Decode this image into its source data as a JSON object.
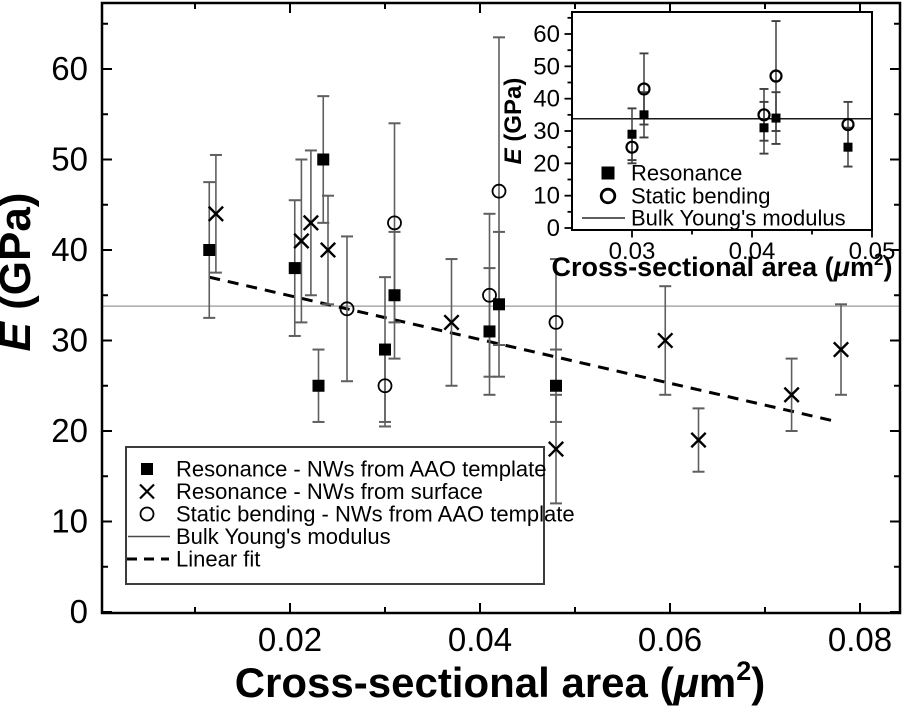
{
  "figure": {
    "background": "#ffffff",
    "ink": "#000000",
    "error_bar_color": "#5f5f5f",
    "bulk_line_color_main": "#9a9a9a",
    "bulk_line_color_inset": "#1a1a1a",
    "legend_border_color": "#3c3c3c"
  },
  "chart_data": [
    {
      "id": "main",
      "type": "scatter",
      "xlabel_text": "Cross-sectional area (μm²)",
      "ylabel_text": "E (GPa)",
      "xlabel": {
        "pre": "Cross-sectional area (",
        "mu": "μ",
        "unit": "m",
        "sup": "2",
        "post": ")"
      },
      "ylabel": {
        "em": "E",
        "rest": " (GPa)"
      },
      "xlim": [
        0.0002,
        0.0842
      ],
      "ylim": [
        0,
        67.3
      ],
      "grid": false,
      "x_ticks": [
        {
          "v": 0.02,
          "label": "0.02"
        },
        {
          "v": 0.04,
          "label": "0.04"
        },
        {
          "v": 0.06,
          "label": "0.06"
        },
        {
          "v": 0.08,
          "label": "0.08"
        }
      ],
      "x_minor_ticks": [
        0.01,
        0.03,
        0.05,
        0.07
      ],
      "y_ticks": [
        {
          "v": 0,
          "label": "0"
        },
        {
          "v": 10,
          "label": "10"
        },
        {
          "v": 20,
          "label": "20"
        },
        {
          "v": 30,
          "label": "30"
        },
        {
          "v": 40,
          "label": "40"
        },
        {
          "v": 50,
          "label": "50"
        },
        {
          "v": 60,
          "label": "60"
        }
      ],
      "y_minor_ticks": [
        5,
        15,
        25,
        35,
        45,
        55,
        65
      ],
      "bulk_youngs_modulus": 33.8,
      "linear_fit": {
        "x1": 0.0115,
        "y1": 37.0,
        "x2": 0.0777,
        "y2": 21.0
      },
      "series": [
        {
          "name": "Resonance - NWs from AAO template",
          "marker": "square",
          "points": [
            [
              0.0115,
              40,
              7.5
            ],
            [
              0.0205,
              38,
              7.5
            ],
            [
              0.023,
              25,
              4
            ],
            [
              0.0235,
              50,
              7
            ],
            [
              0.03,
              29,
              8
            ],
            [
              0.031,
              35,
              7
            ],
            [
              0.041,
              31,
              7
            ],
            [
              0.042,
              34,
              8
            ],
            [
              0.048,
              25,
              4
            ]
          ]
        },
        {
          "name": "Resonance - NWs from surface",
          "marker": "x",
          "points": [
            [
              0.0122,
              44,
              6.5
            ],
            [
              0.0212,
              41,
              9
            ],
            [
              0.0222,
              43,
              8
            ],
            [
              0.024,
              40,
              6
            ],
            [
              0.037,
              32,
              7
            ],
            [
              0.048,
              18,
              6
            ],
            [
              0.0595,
              30,
              6
            ],
            [
              0.063,
              19,
              3.5
            ],
            [
              0.0728,
              24,
              4
            ],
            [
              0.078,
              29,
              5
            ]
          ]
        },
        {
          "name": "Static bending - NWs from AAO template",
          "marker": "circle",
          "points": [
            [
              0.026,
              33.5,
              8
            ],
            [
              0.03,
              25,
              4.5
            ],
            [
              0.031,
              43,
              11
            ],
            [
              0.041,
              35,
              9
            ],
            [
              0.042,
              46.5,
              17
            ],
            [
              0.048,
              32,
              7
            ]
          ]
        }
      ],
      "legend": {
        "position": "bottom-left",
        "items": [
          {
            "marker": "square",
            "label": "Resonance - NWs from AAO template"
          },
          {
            "marker": "x",
            "label": "Resonance - NWs from surface"
          },
          {
            "marker": "circle",
            "label": "Static bending - NWs from AAO template"
          },
          {
            "marker": "line",
            "label": "Bulk Young's modulus"
          },
          {
            "marker": "dash",
            "label": "Linear fit"
          }
        ]
      }
    },
    {
      "id": "inset",
      "type": "scatter",
      "xlabel_text": "Cross-sectional area (μm²)",
      "ylabel_text": "E (GPa)",
      "xlabel": {
        "pre": "Cross-sectional area (",
        "mu": "μ",
        "unit": "m",
        "sup": "2",
        "post": ")"
      },
      "ylabel": {
        "em": "E",
        "rest": " (GPa)"
      },
      "xlim": [
        0.025,
        0.05
      ],
      "ylim": [
        0,
        67
      ],
      "grid": false,
      "x_ticks": [
        {
          "v": 0.03,
          "label": "0.03"
        },
        {
          "v": 0.04,
          "label": "0.04"
        },
        {
          "v": 0.05,
          "label": "0.05"
        }
      ],
      "x_minor_ticks": [
        0.035,
        0.045
      ],
      "y_ticks": [
        {
          "v": 0,
          "label": "0"
        },
        {
          "v": 10,
          "label": "10"
        },
        {
          "v": 20,
          "label": "20"
        },
        {
          "v": 30,
          "label": "30"
        },
        {
          "v": 40,
          "label": "40"
        },
        {
          "v": 50,
          "label": "50"
        },
        {
          "v": 60,
          "label": "60"
        }
      ],
      "y_minor_ticks": [
        5,
        15,
        25,
        35,
        45,
        55,
        65
      ],
      "bulk_youngs_modulus": 33.8,
      "series": [
        {
          "name": "Resonance",
          "marker": "square",
          "points": [
            [
              0.03,
              29,
              8
            ],
            [
              0.031,
              35,
              7
            ],
            [
              0.041,
              31,
              8
            ],
            [
              0.042,
              34,
              8
            ],
            [
              0.048,
              25,
              6
            ]
          ]
        },
        {
          "name": "Static bending",
          "marker": "circle",
          "points": [
            [
              0.03,
              25,
              5
            ],
            [
              0.031,
              43,
              11
            ],
            [
              0.041,
              35,
              8
            ],
            [
              0.042,
              47,
              17
            ],
            [
              0.048,
              32,
              7
            ]
          ]
        }
      ],
      "legend": {
        "position": "inside-bottom-left",
        "items": [
          {
            "marker": "square",
            "label": "Resonance"
          },
          {
            "marker": "circle",
            "label": "Static bending"
          },
          {
            "marker": "line",
            "label": "Bulk Young's modulus"
          }
        ]
      }
    }
  ]
}
